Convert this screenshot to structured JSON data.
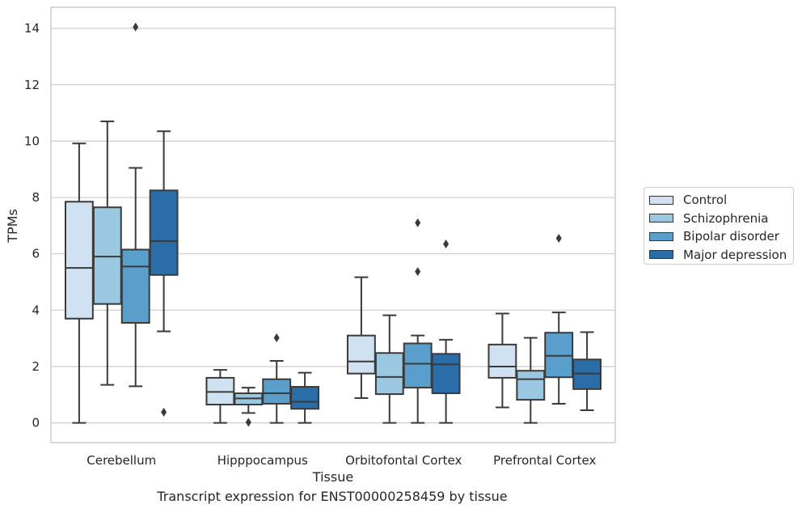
{
  "caption": "Transcript expression for ENST00000258459 by tissue",
  "chart_data": {
    "type": "box",
    "xlabel": "Tissue",
    "ylabel": "TPMs",
    "ylim": [
      -0.7,
      14.75
    ],
    "yticks": [
      "0",
      "2",
      "4",
      "6",
      "8",
      "10",
      "12",
      "14"
    ],
    "grid": "horizontal",
    "legend_position": "right",
    "categories": [
      "Cerebellum",
      "Hipppocampus",
      "Orbitofontal Cortex",
      "Prefrontal Cortex"
    ],
    "series": [
      {
        "name": "Control",
        "color": "#d0e1f2",
        "boxes": [
          {
            "whislo": 0.0,
            "q1": 3.7,
            "med": 5.5,
            "q3": 7.85,
            "whishi": 9.92,
            "fliers": []
          },
          {
            "whislo": 0.0,
            "q1": 0.65,
            "med": 1.1,
            "q3": 1.6,
            "whishi": 1.88,
            "fliers": []
          },
          {
            "whislo": 0.88,
            "q1": 1.75,
            "med": 2.18,
            "q3": 3.1,
            "whishi": 5.17,
            "fliers": []
          },
          {
            "whislo": 0.55,
            "q1": 1.6,
            "med": 2.0,
            "q3": 2.78,
            "whishi": 3.88,
            "fliers": []
          }
        ]
      },
      {
        "name": "Schizophrenia",
        "color": "#9ac8e0",
        "boxes": [
          {
            "whislo": 1.35,
            "q1": 4.22,
            "med": 5.9,
            "q3": 7.65,
            "whishi": 10.7,
            "fliers": []
          },
          {
            "whislo": 0.35,
            "q1": 0.65,
            "med": 0.87,
            "q3": 1.05,
            "whishi": 1.25,
            "fliers": [
              0.02
            ]
          },
          {
            "whislo": 0.0,
            "q1": 1.02,
            "med": 1.63,
            "q3": 2.48,
            "whishi": 3.82,
            "fliers": []
          },
          {
            "whislo": 0.0,
            "q1": 0.82,
            "med": 1.55,
            "q3": 1.85,
            "whishi": 3.02,
            "fliers": []
          }
        ]
      },
      {
        "name": "Bipolar disorder",
        "color": "#5a9fcb",
        "boxes": [
          {
            "whislo": 1.3,
            "q1": 3.55,
            "med": 5.55,
            "q3": 6.15,
            "whishi": 9.05,
            "fliers": [
              14.05
            ]
          },
          {
            "whislo": 0.0,
            "q1": 0.68,
            "med": 1.05,
            "q3": 1.55,
            "whishi": 2.2,
            "fliers": [
              3.02
            ]
          },
          {
            "whislo": 0.0,
            "q1": 1.25,
            "med": 2.1,
            "q3": 2.82,
            "whishi": 3.1,
            "fliers": [
              5.37,
              7.1
            ]
          },
          {
            "whislo": 0.68,
            "q1": 1.62,
            "med": 2.38,
            "q3": 3.2,
            "whishi": 3.92,
            "fliers": [
              6.55
            ]
          }
        ]
      },
      {
        "name": "Major depression",
        "color": "#2b6da9",
        "boxes": [
          {
            "whislo": 3.25,
            "q1": 5.25,
            "med": 6.45,
            "q3": 8.25,
            "whishi": 10.35,
            "fliers": [
              0.38
            ]
          },
          {
            "whislo": 0.0,
            "q1": 0.5,
            "med": 0.75,
            "q3": 1.28,
            "whishi": 1.78,
            "fliers": []
          },
          {
            "whislo": 0.0,
            "q1": 1.05,
            "med": 2.08,
            "q3": 2.45,
            "whishi": 2.95,
            "fliers": [
              6.35
            ]
          },
          {
            "whislo": 0.45,
            "q1": 1.2,
            "med": 1.75,
            "q3": 2.25,
            "whishi": 3.22,
            "fliers": []
          }
        ]
      }
    ]
  }
}
